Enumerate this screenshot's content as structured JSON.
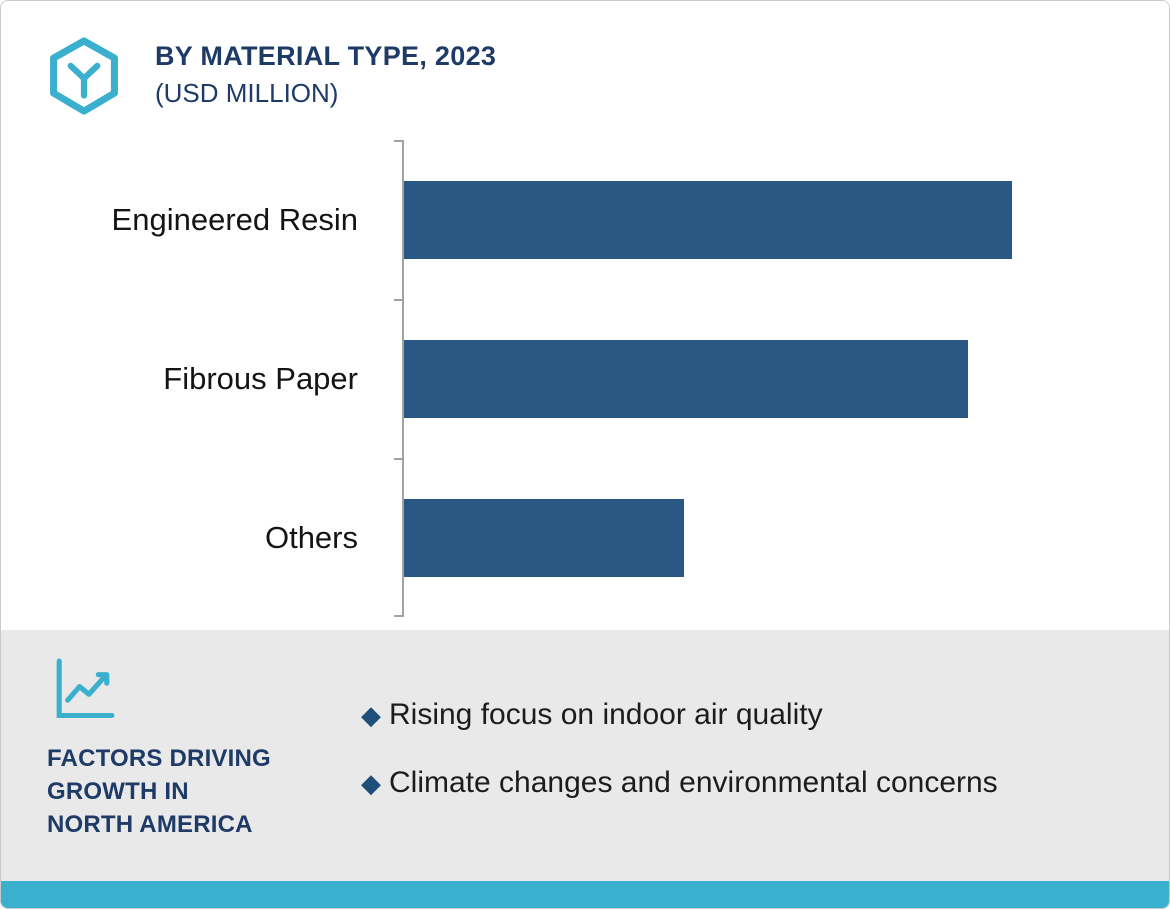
{
  "colors": {
    "bar": "#2a5784",
    "navy_text": "#1e3a66",
    "teal_accent": "#3bafce",
    "panel_gray": "#e9e9e9",
    "axis_gray": "#a2a2a2"
  },
  "header": {
    "logo_icon": "hexagon-molecule-icon",
    "title_line1": "BY MATERIAL TYPE, 2023",
    "title_line2": "(USD MILLION)"
  },
  "chart_data": {
    "type": "bar",
    "orientation": "horizontal",
    "title": "BY MATERIAL TYPE, 2023 (USD MILLION)",
    "unit": "USD Million",
    "categories": [
      "Engineered Resin",
      "Fibrous Paper",
      "Others"
    ],
    "values": [
      100,
      92.8,
      46.1
    ],
    "value_scale": "relative, max bar = 100 (no numeric value labels or value axis shown)",
    "bar_color": "#2a5784",
    "legend": "none",
    "grid": "off",
    "axis_style": "single left category axis with tick marks between categories"
  },
  "factors": {
    "icon": "line-chart-icon",
    "heading_lines": [
      "FACTORS DRIVING",
      "GROWTH IN",
      "NORTH AMERICA"
    ],
    "bullet_marker": "◆",
    "bullets": [
      "Rising focus on indoor air quality",
      "Climate changes and environmental concerns"
    ]
  }
}
